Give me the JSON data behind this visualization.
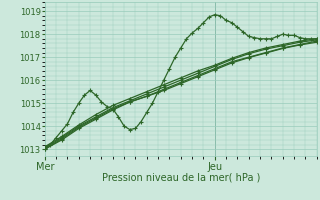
{
  "background_color": "#cce8dc",
  "plot_bg_color": "#cce8dc",
  "grid_color": "#99ccbb",
  "line_color": "#2d6628",
  "marker_color": "#2d6628",
  "xlabel": "Pression niveau de la mer( hPa )",
  "yticks": [
    1013,
    1014,
    1015,
    1016,
    1017,
    1018,
    1019
  ],
  "ylim": [
    1012.7,
    1019.4
  ],
  "xlim": [
    0,
    48
  ],
  "xtick_positions": [
    0,
    30
  ],
  "xtick_labels": [
    "Mer",
    "Jeu"
  ],
  "vline_x": 30,
  "series": [
    {
      "x": [
        0,
        1,
        2,
        3,
        4,
        5,
        6,
        7,
        8,
        9,
        10,
        11,
        12,
        13,
        14,
        15,
        16,
        17,
        18,
        19,
        20,
        21,
        22,
        23,
        24,
        25,
        26,
        27,
        28,
        29,
        30,
        31,
        32,
        33,
        34,
        35,
        36,
        37,
        38,
        39,
        40,
        41,
        42,
        43,
        44,
        45,
        46,
        47,
        48
      ],
      "y": [
        1013.1,
        1013.2,
        1013.5,
        1013.8,
        1014.1,
        1014.6,
        1015.0,
        1015.35,
        1015.55,
        1015.35,
        1015.05,
        1014.85,
        1014.75,
        1014.4,
        1014.0,
        1013.85,
        1013.9,
        1014.2,
        1014.6,
        1015.0,
        1015.5,
        1016.0,
        1016.5,
        1017.0,
        1017.4,
        1017.8,
        1018.05,
        1018.25,
        1018.5,
        1018.75,
        1018.85,
        1018.8,
        1018.6,
        1018.5,
        1018.3,
        1018.1,
        1017.9,
        1017.85,
        1017.8,
        1017.8,
        1017.8,
        1017.9,
        1018.0,
        1017.95,
        1017.95,
        1017.85,
        1017.8,
        1017.8,
        1017.8
      ]
    },
    {
      "x": [
        0,
        3,
        6,
        9,
        12,
        15,
        18,
        21,
        24,
        27,
        30,
        33,
        36,
        39,
        42,
        45,
        48
      ],
      "y": [
        1013.0,
        1013.4,
        1013.9,
        1014.3,
        1014.7,
        1015.05,
        1015.3,
        1015.6,
        1015.9,
        1016.2,
        1016.5,
        1016.8,
        1017.0,
        1017.2,
        1017.4,
        1017.55,
        1017.7
      ]
    },
    {
      "x": [
        0,
        3,
        6,
        9,
        12,
        15,
        18,
        21,
        24,
        27,
        30,
        33,
        36,
        39,
        42,
        45,
        48
      ],
      "y": [
        1013.05,
        1013.5,
        1014.0,
        1014.4,
        1014.8,
        1015.1,
        1015.4,
        1015.7,
        1016.0,
        1016.3,
        1016.6,
        1016.9,
        1017.15,
        1017.35,
        1017.5,
        1017.65,
        1017.75
      ]
    },
    {
      "x": [
        0,
        3,
        6,
        9,
        12,
        15,
        18,
        21,
        24,
        27,
        30,
        33,
        36,
        39,
        42,
        45,
        48
      ],
      "y": [
        1013.1,
        1013.55,
        1014.05,
        1014.5,
        1014.9,
        1015.2,
        1015.5,
        1015.8,
        1016.1,
        1016.4,
        1016.65,
        1016.95,
        1017.2,
        1017.4,
        1017.55,
        1017.7,
        1017.8
      ]
    },
    {
      "x": [
        0,
        3,
        6,
        9,
        12,
        15,
        18,
        21,
        24,
        27,
        30,
        33,
        36,
        39,
        42,
        45,
        48
      ],
      "y": [
        1013.0,
        1013.45,
        1013.95,
        1014.35,
        1014.75,
        1015.05,
        1015.3,
        1015.55,
        1015.85,
        1016.15,
        1016.45,
        1016.75,
        1016.98,
        1017.18,
        1017.38,
        1017.53,
        1017.65
      ]
    }
  ]
}
